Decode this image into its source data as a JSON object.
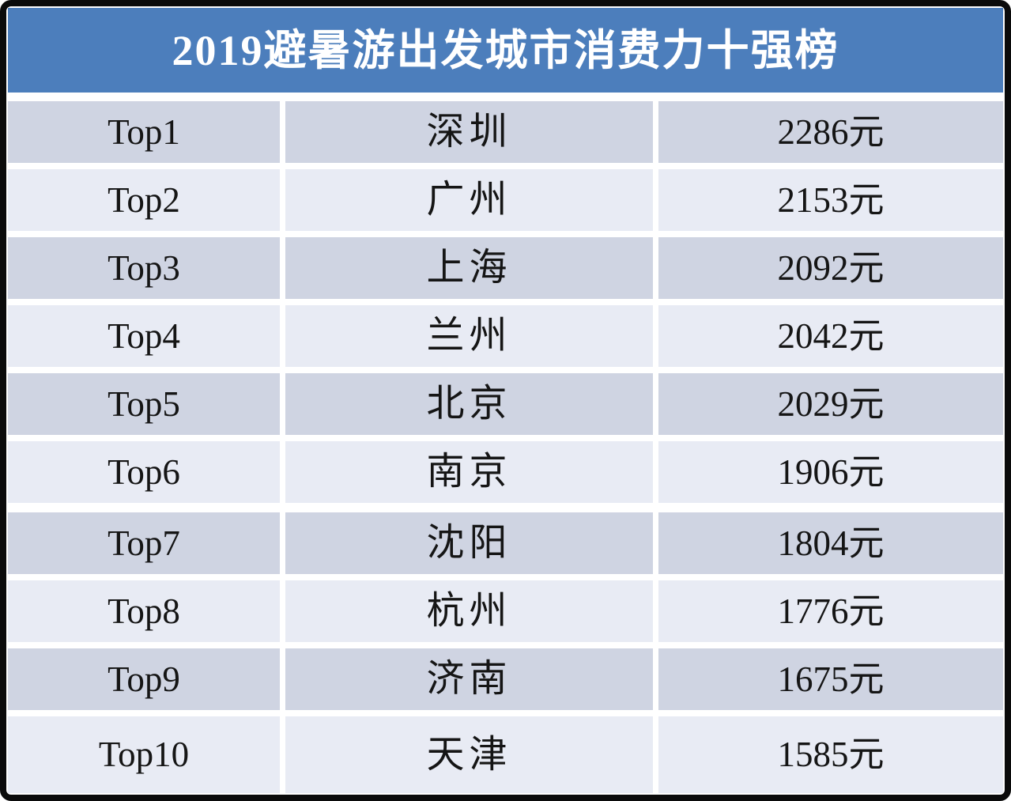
{
  "colors": {
    "frame": "#0b0b0b",
    "banner": "#4c7ebc",
    "title_text": "#ffffff",
    "row_dark": "#cfd4e2",
    "row_light": "#e8ebf4",
    "text": "#151515"
  },
  "chart_data": {
    "type": "table",
    "title": "2019避暑游出发城市消费力十强榜",
    "unit": "元",
    "values": [
      2286,
      2153,
      2092,
      2042,
      2029,
      1906,
      1804,
      1776,
      1675,
      1585
    ],
    "categories": [
      "深圳",
      "广州",
      "上海",
      "兰州",
      "北京",
      "南京",
      "沈阳",
      "杭州",
      "济南",
      "天津"
    ],
    "rows": [
      {
        "rank": "Top1",
        "city": "深圳",
        "price": "2286元"
      },
      {
        "rank": "Top2",
        "city": "广州",
        "price": "2153元"
      },
      {
        "rank": "Top3",
        "city": "上海",
        "price": "2092元"
      },
      {
        "rank": "Top4",
        "city": "兰州",
        "price": "2042元"
      },
      {
        "rank": "Top5",
        "city": "北京",
        "price": "2029元"
      },
      {
        "rank": "Top6",
        "city": "南京",
        "price": "1906元"
      },
      {
        "rank": "Top7",
        "city": "沈阳",
        "price": "1804元"
      },
      {
        "rank": "Top8",
        "city": "杭州",
        "price": "1776元"
      },
      {
        "rank": "Top9",
        "city": "济南",
        "price": "1675元"
      },
      {
        "rank": "Top10",
        "city": "天津",
        "price": "1585元"
      }
    ]
  }
}
